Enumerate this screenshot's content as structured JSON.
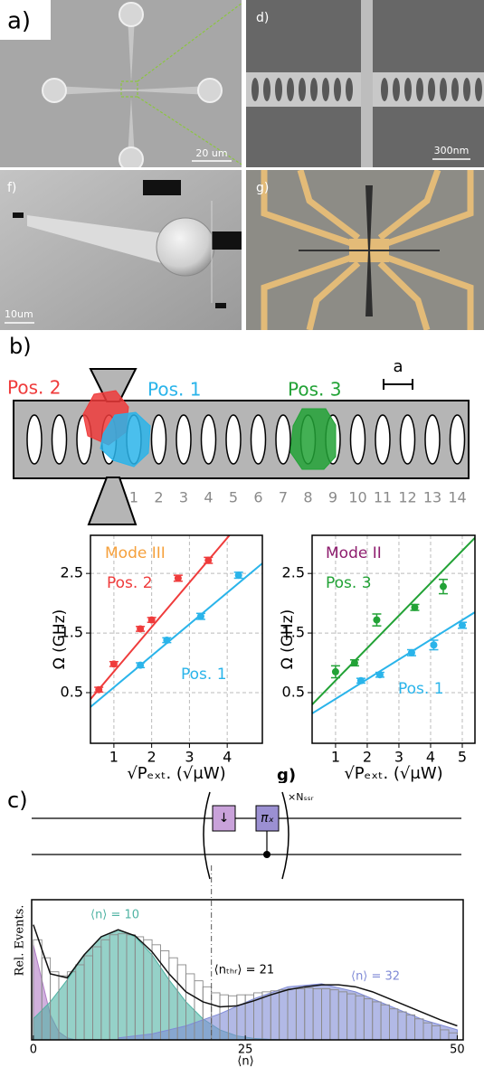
{
  "panels": {
    "panel_a": {
      "label": "a)",
      "scale_bar": "20 um"
    },
    "panel_d": {
      "label": "d)",
      "scale_bar": "300nm"
    },
    "panel_f": {
      "label": "f)",
      "scale_bar": "10um"
    },
    "panel_g": {
      "label": "g)"
    },
    "panel_b": {
      "label": "b)",
      "positions": [
        {
          "name": "Pos. 2",
          "color": "#ef3b3b"
        },
        {
          "name": "Pos. 1",
          "color": "#2ab4ea"
        },
        {
          "name": "Pos. 3",
          "color": "#22a236"
        }
      ],
      "lattice_label": "a",
      "sites": [
        1,
        2,
        3,
        4,
        5,
        6,
        7,
        8,
        9,
        10,
        11,
        12,
        13,
        14
      ]
    },
    "cut_label": "g)",
    "panel_c": {
      "label": "c)",
      "gates": [
        "↓",
        "πₓ"
      ],
      "repeat": "×Nₛₛᵣ"
    }
  },
  "chart_data": [
    {
      "type": "scatter",
      "title": "Mode III",
      "title_color": "#f5a03c",
      "xlabel": "√Pₑₓₜ.  (√μW)",
      "ylabel": "Ω (GHz)",
      "xlim": [
        0.38,
        4.93
      ],
      "ylim": [
        -0.35,
        3.14
      ],
      "xticks": [
        1,
        2,
        3,
        4
      ],
      "yticks": [
        0.5,
        1.5,
        2.5
      ],
      "grid": true,
      "series": [
        {
          "name": "Pos. 2",
          "color": "#ef3b3b",
          "x": [
            0.6,
            1.0,
            1.7,
            2.0,
            2.7,
            3.5
          ],
          "values": [
            0.55,
            0.98,
            1.57,
            1.72,
            2.42,
            2.72
          ],
          "errors": [
            0.04,
            0.04,
            0.04,
            0.04,
            0.05,
            0.05
          ],
          "fit": {
            "x": [
              0.38,
              4.06
            ],
            "values": [
              0.39,
              3.14
            ]
          }
        },
        {
          "name": "Pos. 1",
          "color": "#2ab4ea",
          "x": [
            1.7,
            2.4,
            3.3,
            4.3
          ],
          "values": [
            0.96,
            1.38,
            1.78,
            2.47
          ],
          "errors": [
            0.04,
            0.04,
            0.05,
            0.05
          ],
          "fit": {
            "x": [
              0.38,
              4.93
            ],
            "values": [
              0.26,
              2.67
            ]
          }
        }
      ]
    },
    {
      "type": "scatter",
      "title": "Mode II",
      "title_color": "#8e1d6e",
      "xlabel": "√Pₑₓₜ.  (√μW)",
      "ylabel": "Ω (GHz)",
      "xlim": [
        0.26,
        5.4
      ],
      "ylim": [
        -0.35,
        3.14
      ],
      "xticks": [
        1,
        2,
        3,
        4,
        5
      ],
      "yticks": [
        0.5,
        1.5,
        2.5
      ],
      "grid": true,
      "series": [
        {
          "name": "Pos. 3",
          "color": "#22a236",
          "x": [
            1.0,
            1.6,
            2.3,
            3.5,
            4.4
          ],
          "values": [
            0.85,
            1.0,
            1.72,
            1.93,
            2.28
          ],
          "errors": [
            0.1,
            0.05,
            0.1,
            0.05,
            0.12
          ],
          "fit": {
            "x": [
              0.26,
              5.4
            ],
            "values": [
              0.3,
              3.1
            ]
          }
        },
        {
          "name": "Pos. 1",
          "color": "#2ab4ea",
          "x": [
            1.8,
            2.4,
            3.4,
            4.1,
            5.0
          ],
          "values": [
            0.7,
            0.8,
            1.17,
            1.3,
            1.63
          ],
          "errors": [
            0.04,
            0.04,
            0.05,
            0.08,
            0.05
          ],
          "fit": {
            "x": [
              0.26,
              5.4
            ],
            "values": [
              0.15,
              1.85
            ]
          }
        }
      ]
    },
    {
      "type": "histogram",
      "xlabel": "⟨n⟩",
      "ylabel": "Rel. Events.",
      "xlim": [
        -0.2,
        50.7
      ],
      "ylim": [
        0,
        1.4
      ],
      "xticks": [
        0,
        25,
        50
      ],
      "bins": [
        0,
        1,
        2,
        3,
        4,
        5,
        6,
        7,
        8,
        9,
        10,
        11,
        12,
        13,
        14,
        15,
        16,
        17,
        18,
        19,
        20,
        21,
        22,
        23,
        24,
        25,
        26,
        27,
        28,
        29,
        30,
        31,
        32,
        33,
        34,
        35,
        36,
        37,
        38,
        39,
        40,
        41,
        42,
        43,
        44,
        45,
        46,
        47,
        48,
        49,
        50
      ],
      "values": [
        1.0,
        0.82,
        0.68,
        0.64,
        0.68,
        0.75,
        0.84,
        0.93,
        1.0,
        1.05,
        1.06,
        1.05,
        1.03,
        1.0,
        0.95,
        0.89,
        0.82,
        0.75,
        0.66,
        0.59,
        0.53,
        0.47,
        0.45,
        0.44,
        0.45,
        0.45,
        0.47,
        0.48,
        0.49,
        0.5,
        0.51,
        0.51,
        0.52,
        0.51,
        0.51,
        0.5,
        0.48,
        0.46,
        0.44,
        0.41,
        0.38,
        0.35,
        0.31,
        0.28,
        0.25,
        0.21,
        0.17,
        0.14,
        0.1,
        0.07
      ],
      "bar_color": "#8a8a8a",
      "components": [
        {
          "color": "#b07cc6",
          "x": [
            0,
            1,
            2,
            3,
            4,
            5
          ],
          "values": [
            0.95,
            0.6,
            0.25,
            0.08,
            0.02,
            0
          ]
        },
        {
          "name": "⟨n⟩ = 10",
          "color": "#4fb3a3",
          "x": [
            0,
            2,
            4,
            6,
            8,
            10,
            12,
            14,
            16,
            18,
            20,
            22,
            24,
            26,
            28,
            30
          ],
          "values": [
            0.21,
            0.38,
            0.6,
            0.85,
            1.03,
            1.1,
            1.03,
            0.85,
            0.6,
            0.38,
            0.21,
            0.1,
            0.04,
            0.015,
            0.005,
            0
          ]
        },
        {
          "name": "⟨n⟩ = 32",
          "color": "#7f8ad6",
          "x": [
            10,
            14,
            18,
            22,
            26,
            30,
            34,
            38,
            42,
            46,
            50
          ],
          "values": [
            0.02,
            0.06,
            0.14,
            0.26,
            0.41,
            0.53,
            0.56,
            0.48,
            0.34,
            0.2,
            0.1
          ]
        }
      ],
      "fit": {
        "color": "#111111",
        "x": [
          0,
          2,
          4,
          6,
          8,
          10,
          12,
          14,
          16,
          18,
          20,
          22,
          24,
          26,
          28,
          30,
          32,
          34,
          36,
          38,
          40,
          42,
          44,
          46,
          48,
          50
        ],
        "values": [
          1.15,
          0.66,
          0.62,
          0.85,
          1.03,
          1.1,
          1.04,
          0.88,
          0.66,
          0.48,
          0.38,
          0.33,
          0.34,
          0.39,
          0.45,
          0.5,
          0.53,
          0.55,
          0.55,
          0.53,
          0.48,
          0.41,
          0.34,
          0.27,
          0.2,
          0.14
        ]
      },
      "threshold": {
        "value": 21,
        "label": "⟨nₜₕᵣ⟩ = 21"
      }
    }
  ]
}
